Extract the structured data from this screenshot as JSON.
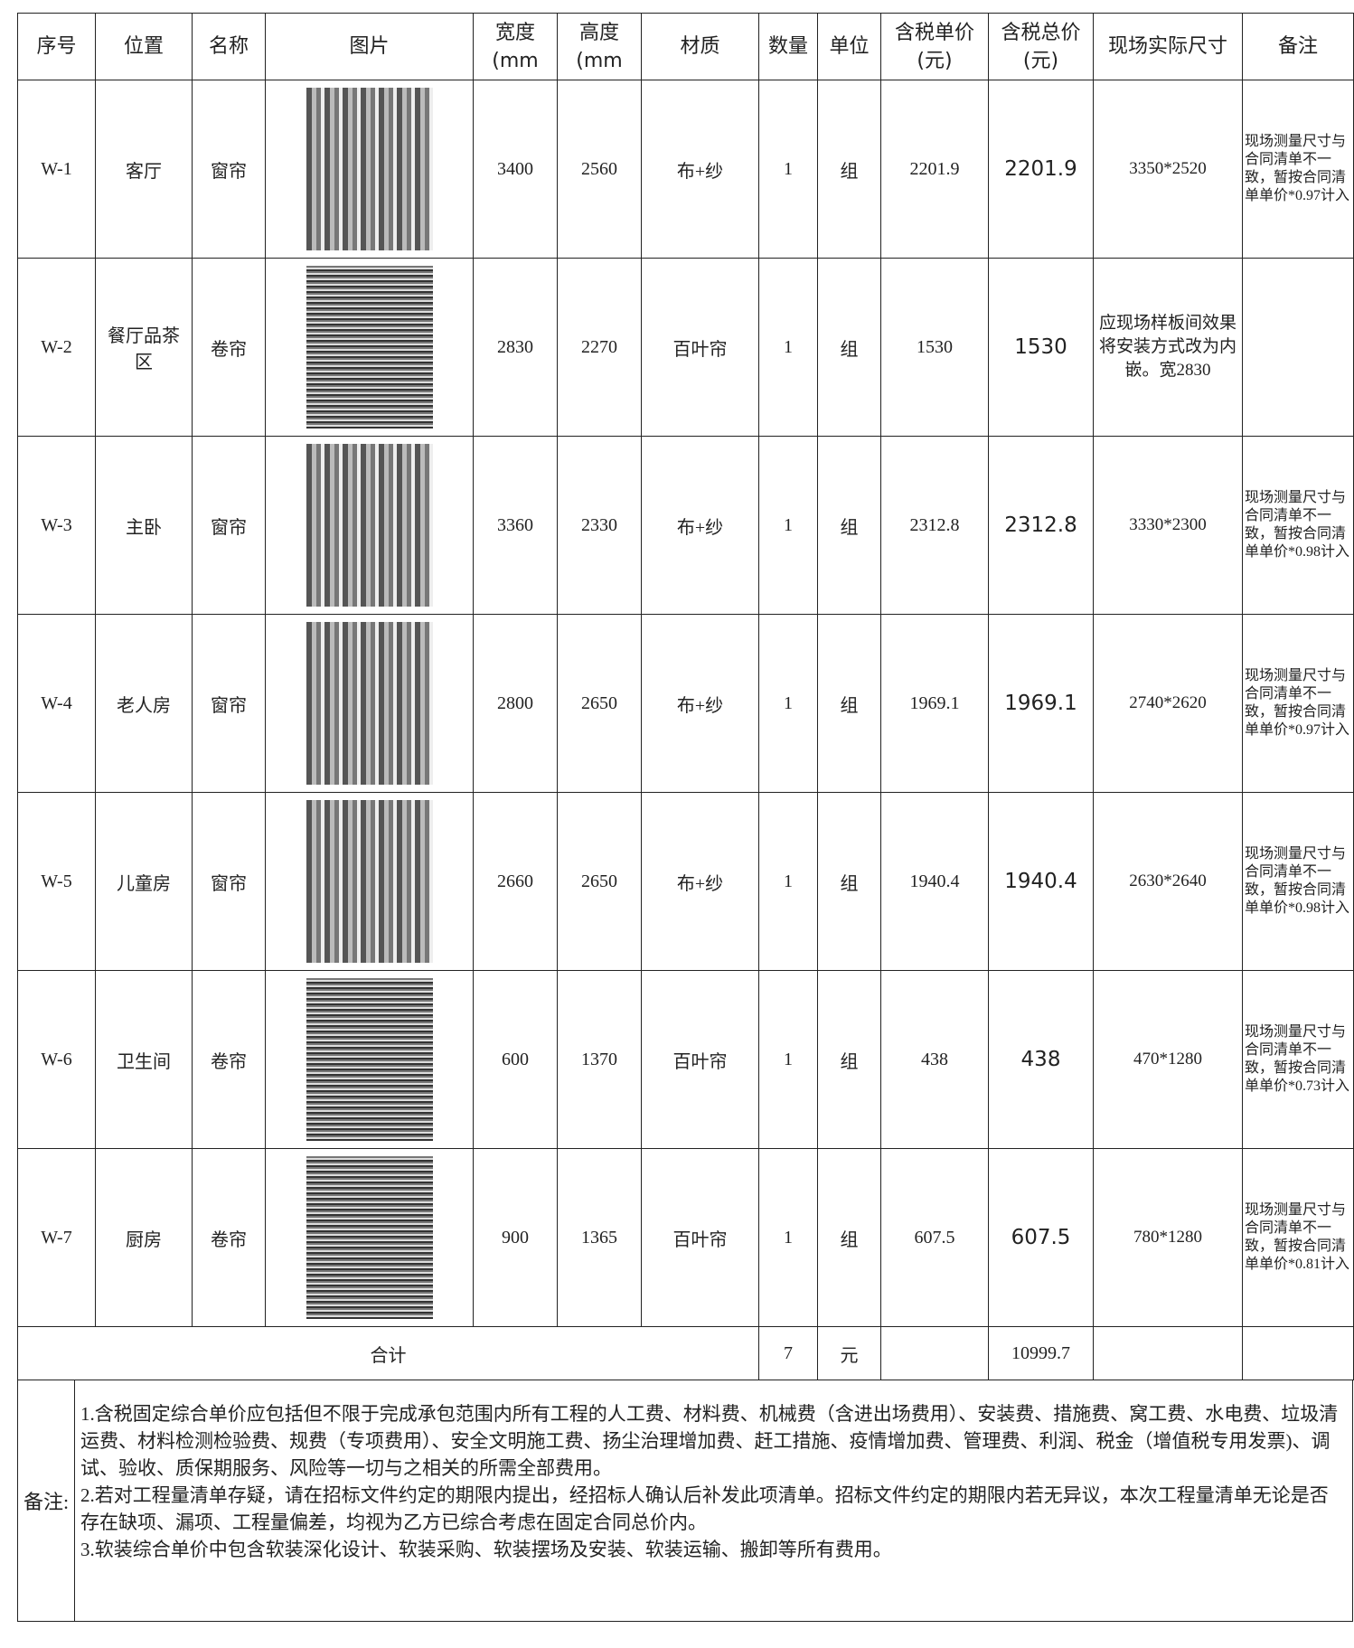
{
  "header": {
    "columns": [
      "序号",
      "位置",
      "名称",
      "图片",
      "宽度\n(mm",
      "高度\n(mm",
      "材质",
      "数量",
      "单位",
      "含税单价\n(元)",
      "含税总价\n(元)",
      "现场实际尺寸",
      "备注"
    ]
  },
  "table": {
    "rows": [
      {
        "id": "W-1",
        "location": "客厅",
        "name": "窗帘",
        "width": 3400,
        "height": 2560,
        "material": "布+纱",
        "qty": 1,
        "unit": "组",
        "unit_price": 2201.9,
        "total_price": 2201.9,
        "actual_size": "3350*2520",
        "remark": "现场测量尺寸与合同清单不一致，暂按合同清单单价*0.97计入"
      },
      {
        "id": "W-2",
        "location": "餐厅品茶区",
        "name": "卷帘",
        "width": 2830,
        "height": 2270,
        "material": "百叶帘",
        "qty": 1,
        "unit": "组",
        "unit_price": 1530,
        "total_price": 1530,
        "actual_size": "应现场样板间效果将安装方式改为内嵌。宽2830"
      },
      {
        "id": "W-3",
        "location": "主卧",
        "name": "窗帘",
        "width": 3360,
        "height": 2330,
        "material": "布+纱",
        "qty": 1,
        "unit": "组",
        "unit_price": 2312.8,
        "total_price": 2312.8,
        "actual_size": "3330*2300",
        "remark": "现场测量尺寸与合同清单不一致，暂按合同清单单价*0.98计入"
      },
      {
        "id": "W-4",
        "location": "老人房",
        "name": "窗帘",
        "width": 2800,
        "height": 2650,
        "material": "布+纱",
        "qty": 1,
        "unit": "组",
        "unit_price": 1969.1,
        "total_price": 1969.1,
        "actual_size": "2740*2620",
        "remark": "现场测量尺寸与合同清单不一致，暂按合同清单单价*0.97计入"
      },
      {
        "id": "W-5",
        "location": "儿童房",
        "name": "窗帘",
        "width": 2660,
        "height": 2650,
        "material": "布+纱",
        "qty": 1,
        "unit": "组",
        "unit_price": 1940.4,
        "total_price": 1940.4,
        "actual_size": "2630*2640",
        "remark": "现场测量尺寸与合同清单不一致，暂按合同清单单价*0.98计入"
      },
      {
        "id": "W-6",
        "location": "卫生间",
        "name": "卷帘",
        "width": 600,
        "height": 1370,
        "material": "百叶帘",
        "qty": 1,
        "unit": "组",
        "unit_price": 438,
        "total_price": 438,
        "actual_size": "470*1280",
        "remark": "现场测量尺寸与合同清单不一致，暂按合同清单单价*0.73计入"
      },
      {
        "id": "W-7",
        "location": "厨房",
        "name": "卷帘",
        "width": 900,
        "height": 1365,
        "material": "百叶帘",
        "qty": 1,
        "unit": "组",
        "unit_price": 607.5,
        "total_price": 607.5,
        "actual_size": "780*1280",
        "remark": "现场测量尺寸与合同清单不一致，暂按合同清单单价*0.81计入"
      }
    ],
    "total": {
      "label": "合计",
      "qty": 7,
      "unit": "元",
      "total_price": 10999.7
    }
  },
  "notes": {
    "label": "备注:",
    "items": [
      "1.含税固定综合单价应包括但不限于完成承包范围内所有工程的人工费、材料费、机械费（含进出场费用）、安装费、措施费、窝工费、水电费、垃圾清运费、材料检测检验费、规费（专项费用）、安全文明施工费、扬尘治理增加费、赶工措施、疫情增加费、管理费、利润、税金（增值税专用发票)、调试、验收、质保期服务、风险等一切与之相关的所需全部费用。",
      "2.若对工程量清单存疑，请在招标文件约定的期限内提出，经招标人确认后补发此项清单。招标文件约定的期限内若无异议，本次工程量清单无论是否存在缺项、漏项、工程量偏差，均视为乙方已综合考虑在固定合同总价内。",
      "3.软装综合单价中包含软装深化设计、软装采购、软装摆场及安装、软装运输、搬卸等所有费用。"
    ]
  }
}
